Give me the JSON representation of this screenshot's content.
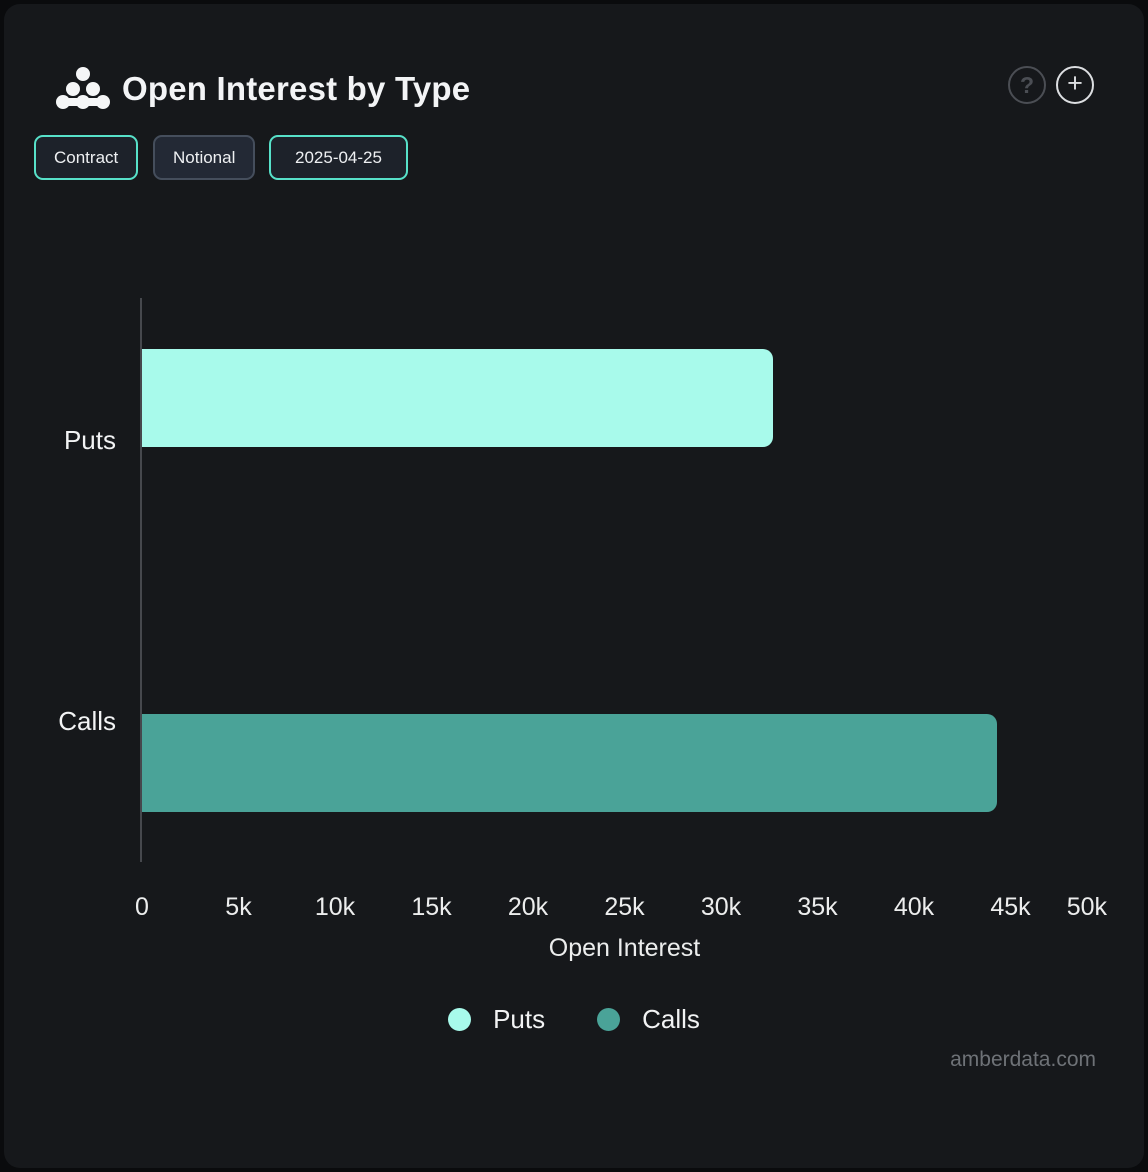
{
  "header": {
    "title": "Open Interest by Type",
    "help_label": "?",
    "plus_label": "+"
  },
  "toolbar": {
    "contract_label": "Contract",
    "notional_label": "Notional",
    "date_label": "2025-04-25"
  },
  "chart_data": {
    "type": "bar",
    "orientation": "horizontal",
    "title": "Open Interest by Type",
    "categories": [
      "Puts",
      "Calls"
    ],
    "series": [
      {
        "name": "Puts",
        "color": "#a8faeb",
        "values": [
          32700,
          null
        ]
      },
      {
        "name": "Calls",
        "color": "#4aa398",
        "values": [
          null,
          44300
        ]
      }
    ],
    "xlabel": "Open Interest",
    "ylabel": "",
    "xlim": [
      0,
      50000
    ],
    "x_ticks": [
      "0",
      "5k",
      "10k",
      "15k",
      "20k",
      "25k",
      "30k",
      "35k",
      "40k",
      "45k",
      "50k"
    ],
    "grid": false,
    "legend_position": "bottom",
    "legend": [
      {
        "label": "Puts",
        "color": "#a8faeb"
      },
      {
        "label": "Calls",
        "color": "#4aa398"
      }
    ]
  },
  "footer": {
    "watermark": "amberdata.com"
  },
  "colors": {
    "panel_bg": "#16181b",
    "outer_bg": "#0a0b0d",
    "accent_teal_border": "#57e1c9",
    "puts_bar": "#a8faeb",
    "calls_bar": "#4aa398",
    "axis_line": "#46484d",
    "text_primary": "#f3f4f6",
    "watermark_text": "#6e7277"
  }
}
